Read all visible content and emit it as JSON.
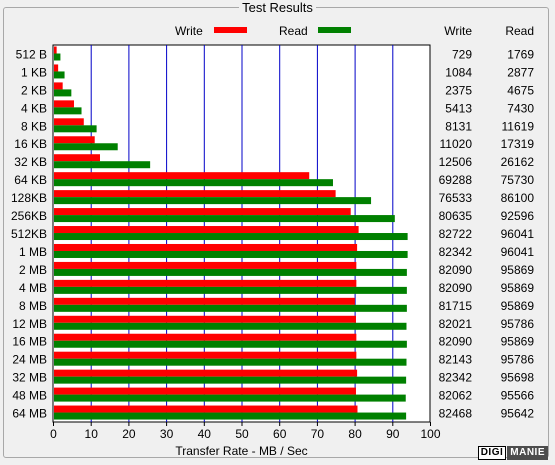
{
  "chart_data": {
    "type": "bar",
    "title": "Test Results",
    "xlabel": "Transfer Rate - MB / Sec",
    "xlim": [
      0,
      100
    ],
    "xticks": [
      "0",
      "10",
      "20",
      "30",
      "40",
      "50",
      "60",
      "70",
      "80",
      "90",
      "100"
    ],
    "categories": [
      "512 B",
      "1 KB",
      "2 KB",
      "4 KB",
      "8 KB",
      "16 KB",
      "32 KB",
      "64 KB",
      "128KB",
      "256KB",
      "512KB",
      "1 MB",
      "2 MB",
      "4 MB",
      "8 MB",
      "12 MB",
      "16 MB",
      "24 MB",
      "32 MB",
      "48 MB",
      "64 MB"
    ],
    "series": [
      {
        "name": "Write",
        "color": "#ff0000",
        "values": [
          0.7,
          1.1,
          2.3,
          5.3,
          7.9,
          10.8,
          12.2,
          67.7,
          74.7,
          78.7,
          80.8,
          80.4,
          80.2,
          80.2,
          79.8,
          80.1,
          80.2,
          80.2,
          80.4,
          80.1,
          80.5
        ],
        "table": [
          "729",
          "1084",
          "2375",
          "5413",
          "8131",
          "11020",
          "12506",
          "69288",
          "76533",
          "80635",
          "82722",
          "82342",
          "82090",
          "82090",
          "81715",
          "82021",
          "82090",
          "82143",
          "82342",
          "82062",
          "82468"
        ]
      },
      {
        "name": "Read",
        "color": "#008000",
        "values": [
          1.7,
          2.8,
          4.6,
          7.3,
          11.3,
          16.9,
          25.5,
          74.0,
          84.1,
          90.4,
          93.8,
          93.8,
          93.6,
          93.6,
          93.6,
          93.5,
          93.6,
          93.5,
          93.4,
          93.3,
          93.4
        ],
        "table": [
          "1769",
          "2877",
          "4675",
          "7430",
          "11619",
          "17319",
          "26162",
          "75730",
          "86100",
          "92596",
          "96041",
          "96041",
          "95869",
          "95869",
          "95869",
          "95786",
          "95869",
          "95786",
          "95698",
          "95566",
          "95642"
        ]
      }
    ],
    "grid": true,
    "legend": "top"
  },
  "table_headers": {
    "write": "Write",
    "read": "Read"
  },
  "watermark": {
    "part1": "DIGI",
    "part2": "MANIE"
  }
}
